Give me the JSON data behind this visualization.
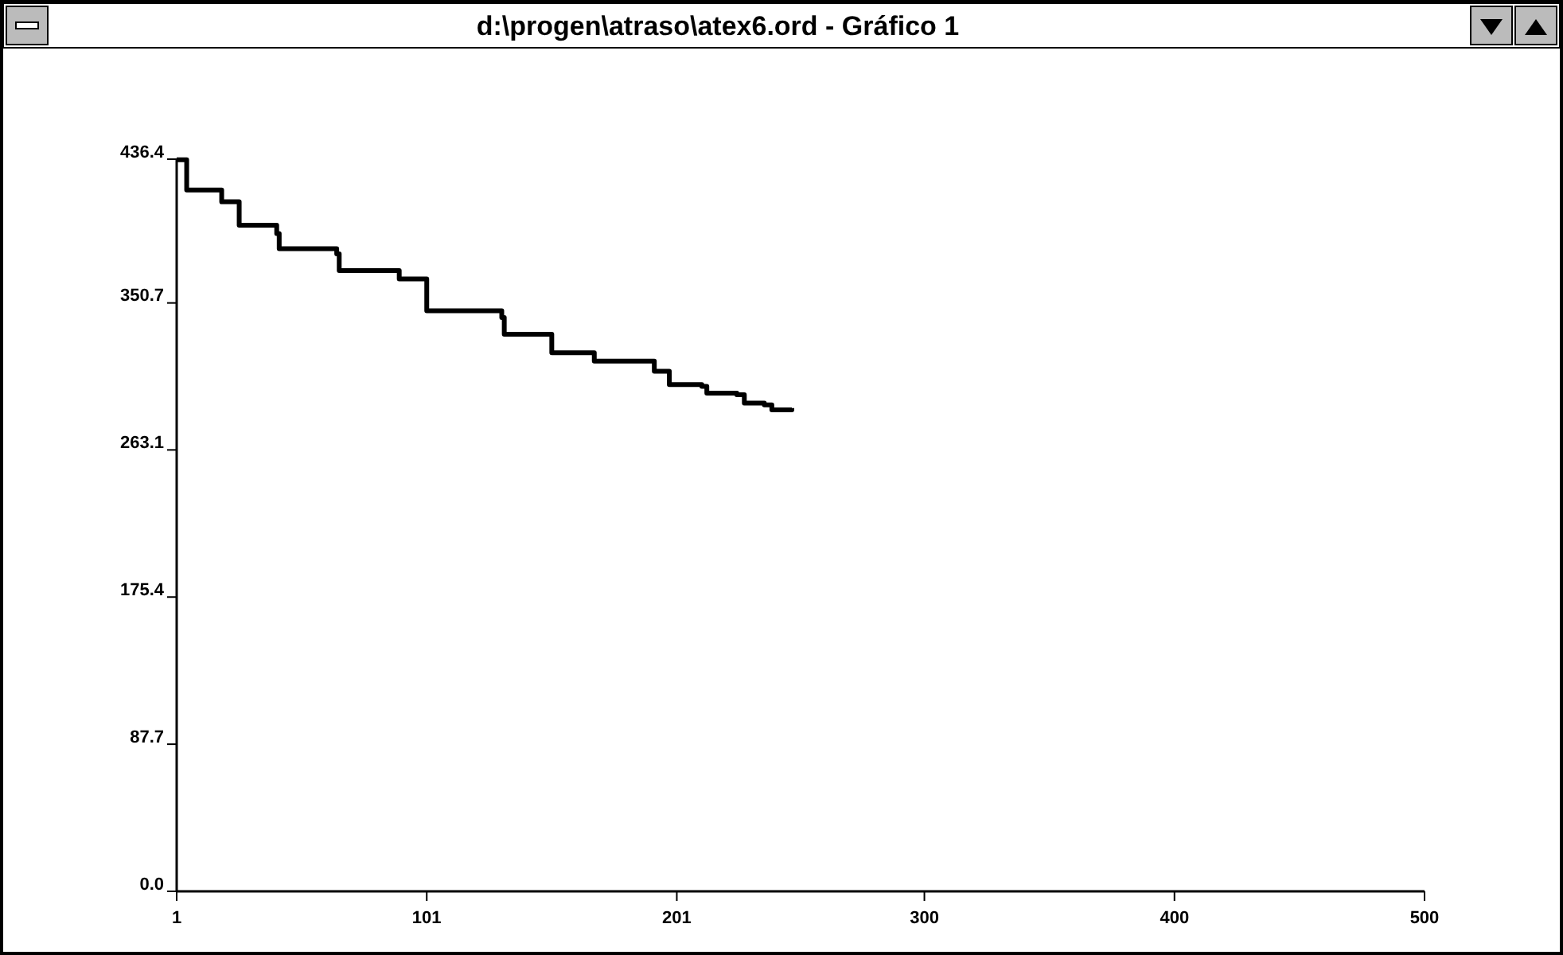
{
  "chart_data": {
    "type": "step",
    "title": "d:\\progen\\atraso\\atex6.ord - Gráfico 1",
    "x": [
      1,
      5,
      19,
      26,
      41,
      42,
      65,
      66,
      90,
      101,
      131,
      132,
      151,
      168,
      192,
      198,
      211,
      213,
      225,
      228,
      236,
      239,
      247
    ],
    "series": [
      {
        "color": "#000000",
        "values": [
          436,
          418,
          411,
          397,
          392,
          383,
          380,
          370,
          365,
          346,
          342,
          332,
          321,
          316,
          310,
          302,
          301,
          297,
          296,
          291,
          290,
          287,
          288
        ]
      }
    ],
    "xlim": [
      1,
      500
    ],
    "xticks": [
      1,
      101,
      201,
      300,
      400,
      500
    ],
    "ylim": [
      0,
      436.4
    ],
    "yticks": [
      {
        "value": 0,
        "label": "0.0"
      },
      87.7,
      175.4,
      263.1,
      350.7,
      436.4
    ],
    "marker": "none",
    "line_style": "solid"
  }
}
